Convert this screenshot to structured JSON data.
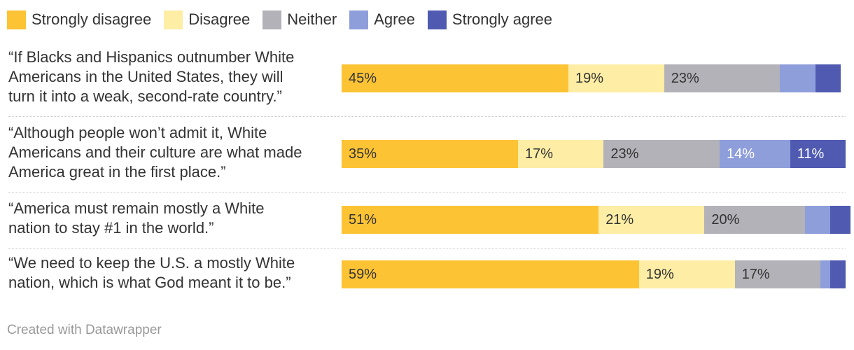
{
  "chart_data": {
    "type": "bar",
    "stacked": true,
    "orientation": "horizontal",
    "categories": [
      "“If Blacks and Hispanics outnumber White Americans in the United States, they will turn it into a weak, second-rate country.”",
      "“Although people won’t admit it, White Americans and their culture are what made America great in the first place.”",
      "“America must remain mostly a White nation to stay #1 in the world.”",
      "“We need to keep the U.S. a mostly White nation, which is what God meant it to be.”"
    ],
    "series": [
      {
        "name": "Strongly disagree",
        "color": "#fcc335",
        "values": [
          45,
          35,
          51,
          59
        ],
        "labels": [
          "45%",
          "35%",
          "51%",
          "59%"
        ]
      },
      {
        "name": "Disagree",
        "color": "#fdeda5",
        "values": [
          19,
          17,
          21,
          19
        ],
        "labels": [
          "19%",
          "17%",
          "21%",
          "19%"
        ]
      },
      {
        "name": "Neither",
        "color": "#b2b2b8",
        "values": [
          23,
          23,
          20,
          17
        ],
        "labels": [
          "23%",
          "23%",
          "20%",
          "17%"
        ]
      },
      {
        "name": "Agree",
        "color": "#8e9edb",
        "values": [
          7,
          14,
          5,
          2
        ],
        "labels": [
          "",
          "14%",
          "",
          ""
        ]
      },
      {
        "name": "Strongly agree",
        "color": "#4f5ab0",
        "values": [
          5,
          11,
          4,
          3
        ],
        "labels": [
          "",
          "11%",
          "",
          ""
        ]
      }
    ],
    "value_max": 100,
    "legend_position": "top-left"
  },
  "questions": [
    [
      "“If Blacks and Hispanics outnumber White",
      "Americans in the United States, they will",
      "turn it into a weak, second-rate country.”"
    ],
    [
      "“Although people won’t admit it, White",
      "Americans and their culture are what made",
      "America great in the first place.”"
    ],
    [
      "“America must remain mostly a White",
      "nation to stay #1 in the world.”"
    ],
    [
      "“We need to keep the U.S. a mostly White",
      "nation, which is what God meant it to be.”"
    ]
  ],
  "footer": "Created with Datawrapper"
}
